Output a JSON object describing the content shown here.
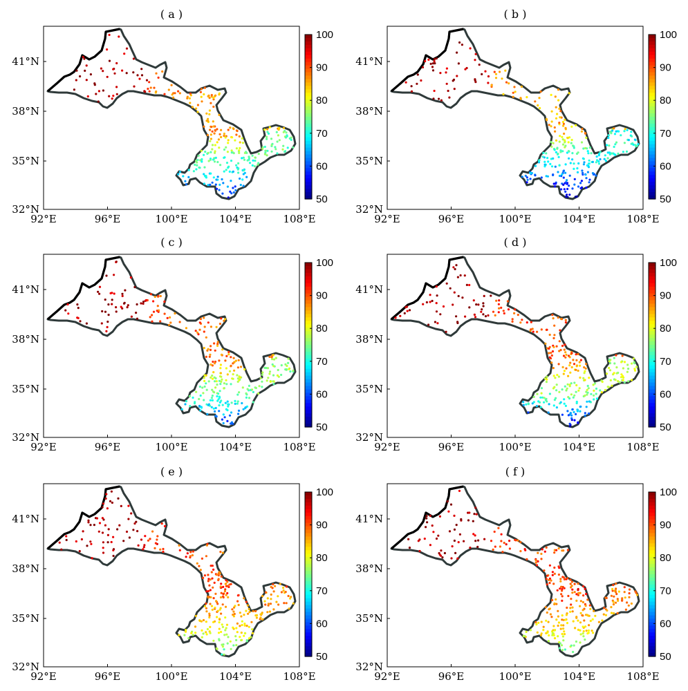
{
  "figure": {
    "panels": [
      {
        "label": "( a )",
        "seed": 11,
        "variant": 0
      },
      {
        "label": "( b )",
        "seed": 23,
        "variant": 1
      },
      {
        "label": "( c )",
        "seed": 37,
        "variant": 2
      },
      {
        "label": "( d )",
        "seed": 41,
        "variant": 3
      },
      {
        "label": "( e )",
        "seed": 53,
        "variant": 4
      },
      {
        "label": "( f )",
        "seed": 67,
        "variant": 5
      }
    ],
    "x_ticks": [
      "92°E",
      "96°E",
      "100°E",
      "104°E",
      "108°E"
    ],
    "y_ticks": [
      "41°N",
      "38°N",
      "35°N",
      "32°N"
    ],
    "colorbar": {
      "ticks": [
        "100",
        "90",
        "80",
        "70",
        "60",
        "50"
      ],
      "min": 50,
      "max": 100,
      "colormap": "jet"
    }
  },
  "chart_data": [
    {
      "type": "scatter",
      "title": "( a )",
      "xlabel": "",
      "ylabel": "",
      "xlim": [
        92,
        109
      ],
      "ylim": [
        32,
        43
      ],
      "x_ticks": [
        "92°E",
        "96°E",
        "100°E",
        "104°E",
        "108°E"
      ],
      "y_ticks": [
        "41°N",
        "38°N",
        "35°N",
        "32°N"
      ],
      "colorbar_range": [
        50,
        100
      ],
      "pattern": "west ~95–100, central corridor ~85–90, southeast ~65–80, far south ~55–65"
    },
    {
      "type": "scatter",
      "title": "( b )",
      "xlabel": "",
      "ylabel": "",
      "xlim": [
        92,
        109
      ],
      "ylim": [
        32,
        43
      ],
      "x_ticks": [
        "92°E",
        "96°E",
        "100°E",
        "104°E",
        "108°E"
      ],
      "y_ticks": [
        "41°N",
        "38°N",
        "35°N",
        "32°N"
      ],
      "colorbar_range": [
        50,
        100
      ],
      "pattern": "west ~95–100, corridor ~85–90, southeast ~60–75, far south ~50–60"
    },
    {
      "type": "scatter",
      "title": "( c )",
      "xlabel": "",
      "ylabel": "",
      "xlim": [
        92,
        109
      ],
      "ylim": [
        32,
        43
      ],
      "x_ticks": [
        "92°E",
        "96°E",
        "100°E",
        "104°E",
        "108°E"
      ],
      "y_ticks": [
        "41°N",
        "38°N",
        "35°N",
        "32°N"
      ],
      "colorbar_range": [
        50,
        100
      ],
      "pattern": "west ~95–100, corridor ~88–92, southeast ~68–80, far south ~58–65"
    },
    {
      "type": "scatter",
      "title": "( d )",
      "xlabel": "",
      "ylabel": "",
      "xlim": [
        92,
        109
      ],
      "ylim": [
        32,
        43
      ],
      "x_ticks": [
        "92°E",
        "96°E",
        "100°E",
        "104°E",
        "108°E"
      ],
      "y_ticks": [
        "41°N",
        "38°N",
        "35°N",
        "32°N"
      ],
      "colorbar_range": [
        50,
        100
      ],
      "pattern": "west ~95–100, corridor ~88–93, southeast ~70–82, far south ~55–65"
    },
    {
      "type": "scatter",
      "title": "( e )",
      "xlabel": "",
      "ylabel": "",
      "xlim": [
        92,
        109
      ],
      "ylim": [
        32,
        43
      ],
      "x_ticks": [
        "92°E",
        "96°E",
        "100°E",
        "104°E",
        "108°E"
      ],
      "y_ticks": [
        "41°N",
        "38°N",
        "35°N",
        "32°N"
      ],
      "colorbar_range": [
        50,
        100
      ],
      "pattern": "west ~95–100, corridor ~90, southeast ~80–88, far south ~72–78"
    },
    {
      "type": "scatter",
      "title": "( f )",
      "xlabel": "",
      "ylabel": "",
      "xlim": [
        92,
        109
      ],
      "ylim": [
        32,
        43
      ],
      "x_ticks": [
        "92°E",
        "96°E",
        "100°E",
        "104°E",
        "108°E"
      ],
      "y_ticks": [
        "41°N",
        "38°N",
        "35°N",
        "32°N"
      ],
      "colorbar_range": [
        50,
        100
      ],
      "pattern": "west ~95–100, corridor ~90, southeast ~82–88, far south ~72–80"
    }
  ],
  "colors": {
    "outline": "#2f3a3a",
    "frame": "#000000"
  }
}
